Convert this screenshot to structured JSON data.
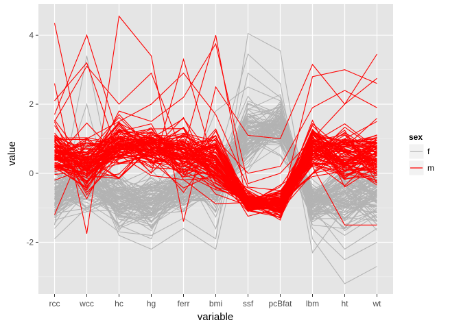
{
  "chart_data": {
    "type": "line",
    "subtype": "parallel-coordinates",
    "xlabel": "variable",
    "ylabel": "value",
    "categories": [
      "rcc",
      "wcc",
      "hc",
      "hg",
      "ferr",
      "bmi",
      "ssf",
      "pcBfat",
      "lbm",
      "ht",
      "wt"
    ],
    "ylim": [
      -3.5,
      4.9
    ],
    "yticks": [
      -2,
      0,
      2,
      4
    ],
    "grid": true,
    "legend": {
      "title": "sex",
      "placement": "right",
      "entries": [
        {
          "label": "f",
          "color": "#b3b3b3"
        },
        {
          "label": "m",
          "color": "#ff0000"
        }
      ]
    },
    "colors": {
      "f": "#b3b3b3",
      "m": "#ff0000",
      "panel": "#e5e5e5",
      "grid": "#ffffff"
    },
    "series_note_counts": {
      "f": 100,
      "m": 102
    },
    "series": [
      {
        "name": "f",
        "values": [
          -1.9,
          -1.0,
          -1.7,
          -1.8,
          -1.3,
          -1.9,
          4.05,
          3.55,
          -1.9,
          -3.2,
          -2.7
        ]
      },
      {
        "name": "f",
        "values": [
          -1.5,
          3.4,
          -1.2,
          -1.5,
          -0.9,
          0.2,
          3.45,
          2.6,
          -2.3,
          -1.0,
          -0.4
        ]
      },
      {
        "name": "f",
        "values": [
          -0.7,
          -0.3,
          -1.5,
          -1.9,
          0.5,
          -1.0,
          2.9,
          2.2,
          -1.6,
          -2.5,
          -2.0
        ]
      },
      {
        "name": "f",
        "values": [
          -0.3,
          0.8,
          -0.9,
          -1.2,
          -0.5,
          1.8,
          2.5,
          2.1,
          -1.2,
          -1.8,
          -1.2
        ]
      },
      {
        "name": "f",
        "values": [
          -1.1,
          0.4,
          -1.8,
          -2.2,
          -1.6,
          -2.2,
          2.0,
          1.6,
          -0.9,
          0.2,
          -0.8
        ]
      },
      {
        "name": "f",
        "values": [
          -0.2,
          -1.0,
          -0.4,
          -0.6,
          0.9,
          -0.5,
          1.7,
          1.9,
          -1.0,
          -2.2,
          -1.6
        ]
      },
      {
        "name": "f",
        "values": [
          -0.9,
          2.0,
          -1.6,
          -1.2,
          -1.1,
          0.4,
          1.5,
          0.9,
          -0.8,
          -1.6,
          -1.2
        ]
      },
      {
        "name": "m",
        "values": [
          4.35,
          0.0,
          1.8,
          1.5,
          2.2,
          3.75,
          -0.3,
          0.0,
          1.0,
          2.0,
          3.45
        ]
      },
      {
        "name": "m",
        "values": [
          2.6,
          -1.75,
          4.55,
          3.4,
          -1.4,
          2.5,
          1.1,
          1.0,
          3.15,
          2.0,
          2.75
        ]
      },
      {
        "name": "m",
        "values": [
          1.7,
          4.0,
          1.0,
          0.0,
          3.3,
          0.1,
          -0.5,
          -1.0,
          2.8,
          3.0,
          2.6
        ]
      },
      {
        "name": "m",
        "values": [
          2.1,
          3.2,
          0.5,
          0.3,
          0.7,
          4.0,
          -1.1,
          -0.9,
          0.0,
          1.0,
          1.5
        ]
      },
      {
        "name": "m",
        "values": [
          1.5,
          3.1,
          2.0,
          2.9,
          0.5,
          1.0,
          0.0,
          0.2,
          1.9,
          2.4,
          1.9
        ]
      },
      {
        "name": "m",
        "values": [
          -1.2,
          1.0,
          1.5,
          2.0,
          2.9,
          1.7,
          -0.4,
          -0.5,
          0.2,
          -1.5,
          -1.5
        ]
      }
    ]
  }
}
